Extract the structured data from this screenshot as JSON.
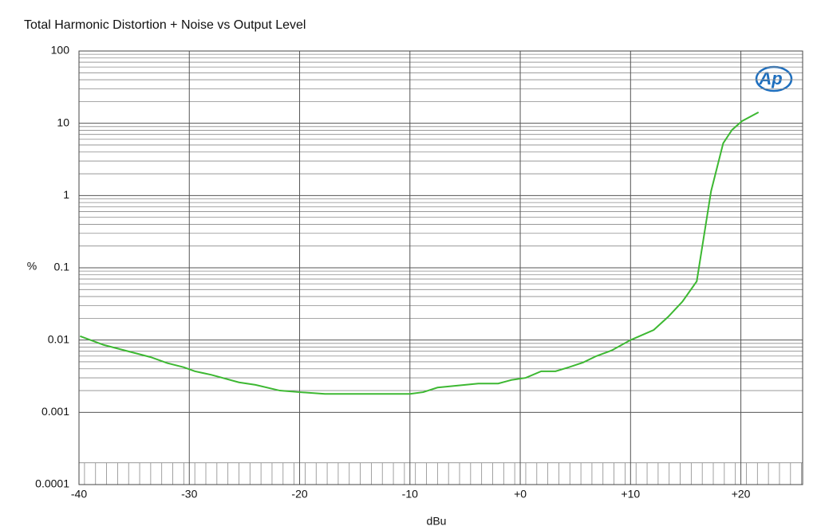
{
  "chart_data": {
    "type": "line",
    "title": "Total Harmonic Distortion + Noise vs Output Level",
    "xlabel": "dBu",
    "ylabel": "%",
    "logo": "Ap",
    "x": [
      -39.9,
      -37.8,
      -33.5,
      -32.0,
      -30.5,
      -29.5,
      -28.0,
      -25.5,
      -24.0,
      -21.8,
      -20.0,
      -17.7,
      -10.0,
      -8.8,
      -7.5,
      -3.8,
      -2.0,
      -0.8,
      0.5,
      1.9,
      3.2,
      4.4,
      5.7,
      6.9,
      8.3,
      10.0,
      12.1,
      13.4,
      14.7,
      16.0,
      17.3,
      18.4,
      19.2,
      20.1,
      21.6
    ],
    "values": [
      0.0113,
      0.0086,
      0.0058,
      0.0048,
      0.0042,
      0.0037,
      0.0033,
      0.0026,
      0.0024,
      0.002,
      0.0019,
      0.0018,
      0.0018,
      0.0019,
      0.0022,
      0.0025,
      0.0025,
      0.0028,
      0.003,
      0.0037,
      0.0037,
      0.0042,
      0.0049,
      0.006,
      0.0072,
      0.01,
      0.0138,
      0.0209,
      0.034,
      0.065,
      1.15,
      5.3,
      8.1,
      10.7,
      14.2
    ],
    "color": "#3db832",
    "xlim": [
      -40,
      25.6
    ],
    "xticks": [
      -40,
      -30,
      -20,
      -10,
      {
        "value": 0,
        "label": "+0"
      },
      {
        "value": 10,
        "label": "+10"
      },
      {
        "value": 20,
        "label": "+20"
      }
    ],
    "ylim": [
      0.0001,
      100
    ],
    "yscale": "log",
    "yticks": [
      100,
      10,
      1,
      0.1,
      0.01,
      0.001,
      0.0001
    ],
    "grid": true
  }
}
